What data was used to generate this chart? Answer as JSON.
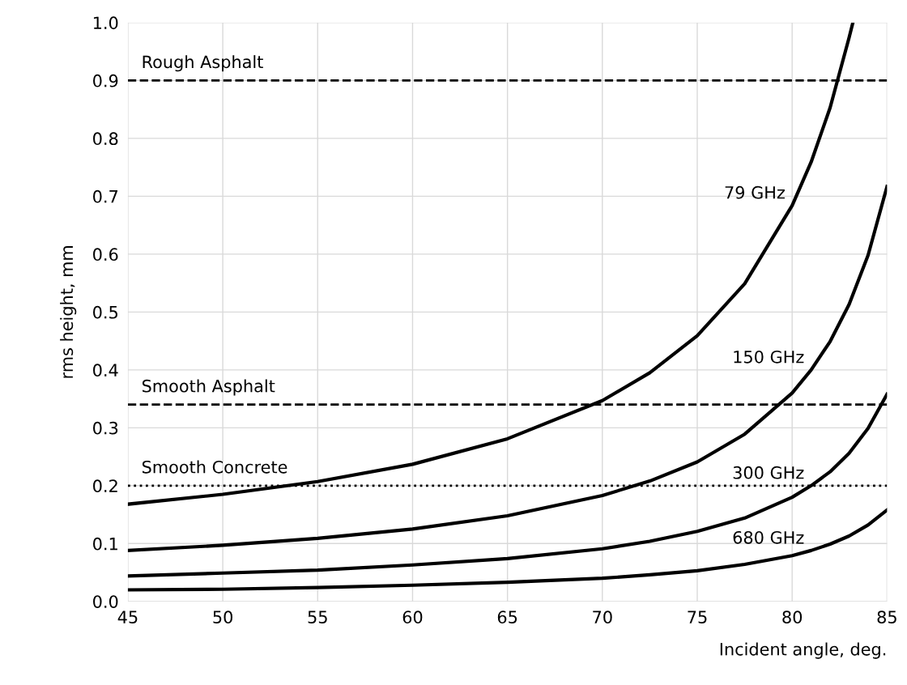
{
  "chart_data": {
    "type": "line",
    "xlabel": "Incident angle, deg.",
    "ylabel": "rms height, mm",
    "xlim": [
      45,
      85
    ],
    "ylim": [
      0,
      1
    ],
    "xticks": [
      45,
      50,
      55,
      60,
      65,
      70,
      75,
      80,
      85
    ],
    "yticks": [
      {
        "value": 0,
        "label": "0.0"
      },
      {
        "value": 0.1,
        "label": "0.1"
      },
      {
        "value": 0.2,
        "label": "0.2"
      },
      {
        "value": 0.3,
        "label": "0.3"
      },
      {
        "value": 0.4,
        "label": "0.4"
      },
      {
        "value": 0.5,
        "label": "0.5"
      },
      {
        "value": 0.6,
        "label": "0.6"
      },
      {
        "value": 0.7,
        "label": "0.7"
      },
      {
        "value": 0.8,
        "label": "0.8"
      },
      {
        "value": 0.9,
        "label": "0.9"
      },
      {
        "value": 1,
        "label": "1.0"
      }
    ],
    "grid": true,
    "marker": "none",
    "line_style": "solid",
    "series": [
      {
        "name": "79 GHz",
        "color": "#000000",
        "x": [
          45,
          50,
          55,
          60,
          65,
          70,
          72.5,
          75,
          77.5,
          80,
          81,
          82,
          83,
          83.2
        ],
        "values": [
          0.168,
          0.185,
          0.207,
          0.237,
          0.281,
          0.347,
          0.395,
          0.459,
          0.549,
          0.684,
          0.759,
          0.853,
          0.974,
          1.0
        ]
      },
      {
        "name": "150 GHz",
        "color": "#000000",
        "x": [
          45,
          50,
          55,
          60,
          65,
          70,
          72.5,
          75,
          77.5,
          80,
          81,
          82,
          83,
          84,
          85
        ],
        "values": [
          0.088,
          0.097,
          0.109,
          0.125,
          0.148,
          0.183,
          0.208,
          0.241,
          0.289,
          0.36,
          0.4,
          0.449,
          0.513,
          0.598,
          0.717
        ]
      },
      {
        "name": "300 GHz",
        "color": "#000000",
        "x": [
          45,
          50,
          55,
          60,
          65,
          70,
          72.5,
          75,
          77.5,
          80,
          81,
          82,
          83,
          84,
          85
        ],
        "values": [
          0.044,
          0.049,
          0.054,
          0.063,
          0.074,
          0.091,
          0.104,
          0.121,
          0.144,
          0.18,
          0.2,
          0.224,
          0.256,
          0.299,
          0.358
        ]
      },
      {
        "name": "680 GHz",
        "color": "#000000",
        "x": [
          45,
          50,
          55,
          60,
          65,
          70,
          72.5,
          75,
          77.5,
          80,
          81,
          82,
          83,
          84,
          85
        ],
        "values": [
          0.02,
          0.021,
          0.024,
          0.028,
          0.033,
          0.04,
          0.046,
          0.053,
          0.064,
          0.079,
          0.088,
          0.099,
          0.113,
          0.132,
          0.158
        ]
      }
    ],
    "ref_lines": [
      {
        "axis": "y",
        "value": 0.9,
        "label": "Rough Asphalt",
        "color": "#000000",
        "line_style": "dashed"
      },
      {
        "axis": "y",
        "value": 0.34,
        "label": "Smooth Asphalt",
        "color": "#000000",
        "line_style": "dashed"
      },
      {
        "axis": "y",
        "value": 0.2,
        "label": "Smooth Concrete",
        "color": "#000000",
        "line_style": "dotted"
      }
    ]
  }
}
